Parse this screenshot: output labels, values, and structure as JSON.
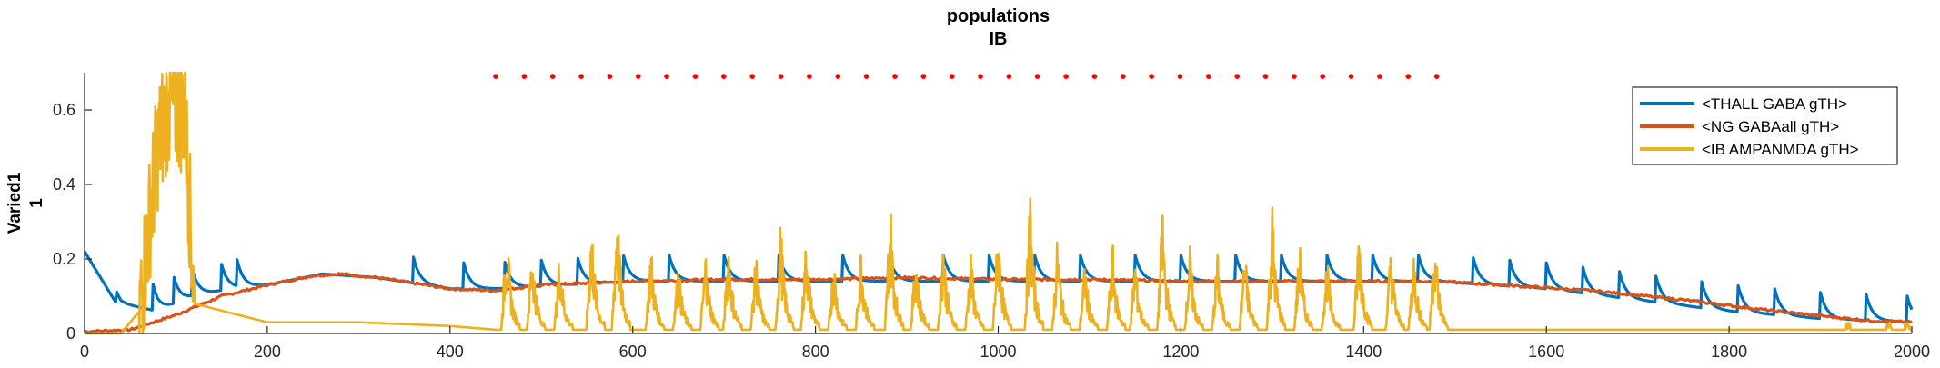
{
  "chart_data": {
    "type": "line",
    "title_lines": [
      "populations",
      "IB"
    ],
    "ylabel_lines": [
      "Varied1",
      "1"
    ],
    "xlabel": "",
    "xlim": [
      0,
      2000
    ],
    "ylim": [
      0,
      0.7
    ],
    "xticks": [
      0,
      200,
      400,
      600,
      800,
      1000,
      1200,
      1400,
      1600,
      1800,
      2000
    ],
    "yticks": [
      0,
      0.2,
      0.4,
      0.6
    ],
    "ytick_labels": [
      "0",
      "0.2",
      "0.4",
      "0.6"
    ],
    "grid": false,
    "legend_position": "top-right",
    "stim_marker": {
      "x_start": 450,
      "x_end": 1480,
      "count": 34,
      "y": 0.69,
      "color": "#ff0000"
    },
    "series": [
      {
        "name": "<THALL GABA gTH>",
        "color": "#0072BD",
        "baseline": [
          [
            0,
            0.2
          ],
          [
            40,
            0.08
          ],
          [
            80,
            0.06
          ],
          [
            120,
            0.1
          ],
          [
            160,
            0.12
          ],
          [
            200,
            0.13
          ],
          [
            260,
            0.16
          ],
          [
            320,
            0.15
          ],
          [
            400,
            0.12
          ],
          [
            450,
            0.12
          ],
          [
            600,
            0.14
          ],
          [
            800,
            0.14
          ],
          [
            1000,
            0.14
          ],
          [
            1200,
            0.14
          ],
          [
            1400,
            0.14
          ],
          [
            1480,
            0.14
          ],
          [
            1600,
            0.12
          ],
          [
            1700,
            0.09
          ],
          [
            1800,
            0.06
          ],
          [
            1900,
            0.04
          ],
          [
            2000,
            0.03
          ]
        ],
        "spikes_x": [
          25,
          75,
          98,
          118,
          150,
          167,
          360,
          415,
          460,
          500,
          540,
          590,
          640,
          700,
          760,
          830,
          880,
          940,
          990,
          1040,
          1090,
          1150,
          1200,
          1260,
          1310,
          1360,
          1410,
          1460,
          1520,
          1560,
          1600,
          1640,
          1680,
          1720,
          1770,
          1810,
          1850,
          1900,
          1950,
          1995
        ],
        "spike_height": 0.07
      },
      {
        "name": "<NG GABAall gTH>",
        "color": "#D95319",
        "points": [
          [
            0,
            0.005
          ],
          [
            50,
            0.01
          ],
          [
            100,
            0.05
          ],
          [
            150,
            0.1
          ],
          [
            200,
            0.13
          ],
          [
            250,
            0.155
          ],
          [
            280,
            0.16
          ],
          [
            320,
            0.15
          ],
          [
            360,
            0.135
          ],
          [
            400,
            0.12
          ],
          [
            450,
            0.115
          ],
          [
            500,
            0.13
          ],
          [
            600,
            0.14
          ],
          [
            700,
            0.145
          ],
          [
            800,
            0.145
          ],
          [
            900,
            0.15
          ],
          [
            1000,
            0.145
          ],
          [
            1100,
            0.145
          ],
          [
            1200,
            0.14
          ],
          [
            1300,
            0.14
          ],
          [
            1400,
            0.14
          ],
          [
            1480,
            0.14
          ],
          [
            1550,
            0.13
          ],
          [
            1650,
            0.115
          ],
          [
            1750,
            0.09
          ],
          [
            1850,
            0.06
          ],
          [
            1950,
            0.035
          ],
          [
            2000,
            0.03
          ]
        ]
      },
      {
        "name": "<IB AMPANMDA gTH>",
        "color": "#EDB120",
        "background": [
          [
            0,
            0.0
          ],
          [
            40,
            0.0
          ],
          [
            60,
            0.06
          ],
          [
            80,
            0.5
          ],
          [
            90,
            0.6
          ],
          [
            110,
            0.6
          ],
          [
            120,
            0.08
          ],
          [
            200,
            0.03
          ],
          [
            300,
            0.03
          ],
          [
            400,
            0.02
          ],
          [
            450,
            0.01
          ],
          [
            1480,
            0.01
          ],
          [
            1600,
            0.01
          ],
          [
            1800,
            0.01
          ],
          [
            2000,
            0.01
          ]
        ],
        "bursts": [
          {
            "x": 462,
            "peak": 0.3
          },
          {
            "x": 490,
            "peak": 0.25
          },
          {
            "x": 520,
            "peak": 0.23
          },
          {
            "x": 555,
            "peak": 0.32
          },
          {
            "x": 583,
            "peak": 0.37
          },
          {
            "x": 620,
            "peak": 0.25
          },
          {
            "x": 650,
            "peak": 0.2
          },
          {
            "x": 680,
            "peak": 0.23
          },
          {
            "x": 705,
            "peak": 0.26
          },
          {
            "x": 735,
            "peak": 0.22
          },
          {
            "x": 762,
            "peak": 0.31
          },
          {
            "x": 790,
            "peak": 0.27
          },
          {
            "x": 820,
            "peak": 0.21
          },
          {
            "x": 850,
            "peak": 0.24
          },
          {
            "x": 882,
            "peak": 0.36
          },
          {
            "x": 910,
            "peak": 0.23
          },
          {
            "x": 940,
            "peak": 0.27
          },
          {
            "x": 970,
            "peak": 0.22
          },
          {
            "x": 1000,
            "peak": 0.31
          },
          {
            "x": 1035,
            "peak": 0.38
          },
          {
            "x": 1065,
            "peak": 0.26
          },
          {
            "x": 1095,
            "peak": 0.2
          },
          {
            "x": 1125,
            "peak": 0.25
          },
          {
            "x": 1150,
            "peak": 0.21
          },
          {
            "x": 1180,
            "peak": 0.34
          },
          {
            "x": 1210,
            "peak": 0.23
          },
          {
            "x": 1240,
            "peak": 0.22
          },
          {
            "x": 1270,
            "peak": 0.24
          },
          {
            "x": 1300,
            "peak": 0.35
          },
          {
            "x": 1330,
            "peak": 0.25
          },
          {
            "x": 1360,
            "peak": 0.21
          },
          {
            "x": 1395,
            "peak": 0.3
          },
          {
            "x": 1430,
            "peak": 0.24
          },
          {
            "x": 1455,
            "peak": 0.23
          },
          {
            "x": 1478,
            "peak": 0.28
          }
        ],
        "tail_bumps_x": [
          1930,
          1975,
          1995
        ]
      }
    ]
  }
}
